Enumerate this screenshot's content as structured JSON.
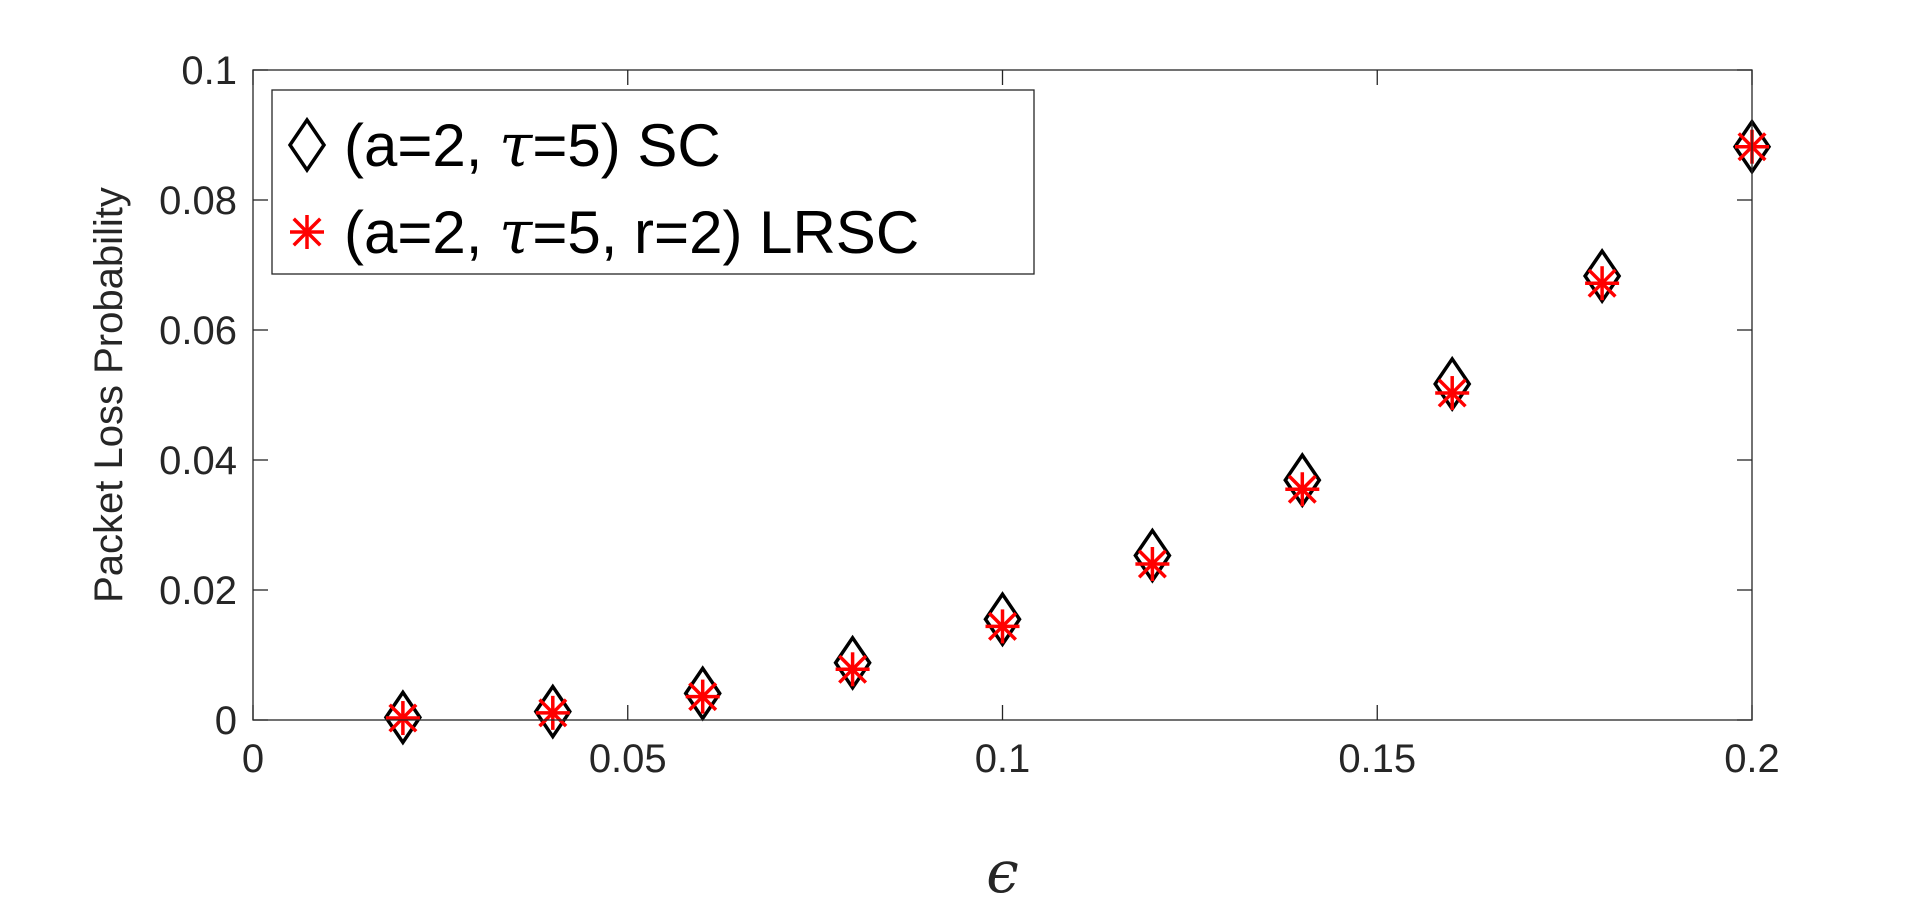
{
  "chart_data": {
    "type": "scatter",
    "title": "",
    "xlabel": "ϵ",
    "ylabel": "Packet Loss Probability",
    "xlim": [
      0,
      0.2
    ],
    "ylim": [
      0,
      0.1
    ],
    "xticks": [
      0,
      0.05,
      0.1,
      0.15,
      0.2
    ],
    "xtick_labels": [
      "0",
      "0.05",
      "0.1",
      "0.15",
      "0.2"
    ],
    "yticks": [
      0,
      0.02,
      0.04,
      0.06,
      0.08,
      0.1
    ],
    "ytick_labels": [
      "0",
      "0.02",
      "0.04",
      "0.06",
      "0.08",
      "0.1"
    ],
    "grid": false,
    "legend_position": "top-left",
    "series": [
      {
        "name_parts": [
          "(a=2, ",
          "τ",
          "=5) SC"
        ],
        "marker": "diamond",
        "color": "#000000",
        "x": [
          0.02,
          0.04,
          0.06,
          0.08,
          0.1,
          0.12,
          0.14,
          0.16,
          0.18,
          0.2
        ],
        "y": [
          0.0004,
          0.0013,
          0.0041,
          0.0088,
          0.0155,
          0.0253,
          0.0369,
          0.0517,
          0.0683,
          0.0882
        ]
      },
      {
        "name_parts": [
          "(a=2, ",
          "τ",
          "=5, r=2) LRSC"
        ],
        "marker": "asterisk",
        "color": "#ff0000",
        "x": [
          0.02,
          0.04,
          0.06,
          0.08,
          0.1,
          0.12,
          0.14,
          0.16,
          0.18,
          0.2
        ],
        "y": [
          0.0003,
          0.0011,
          0.0036,
          0.0078,
          0.0144,
          0.024,
          0.0355,
          0.0503,
          0.0672,
          0.0882
        ]
      }
    ]
  }
}
